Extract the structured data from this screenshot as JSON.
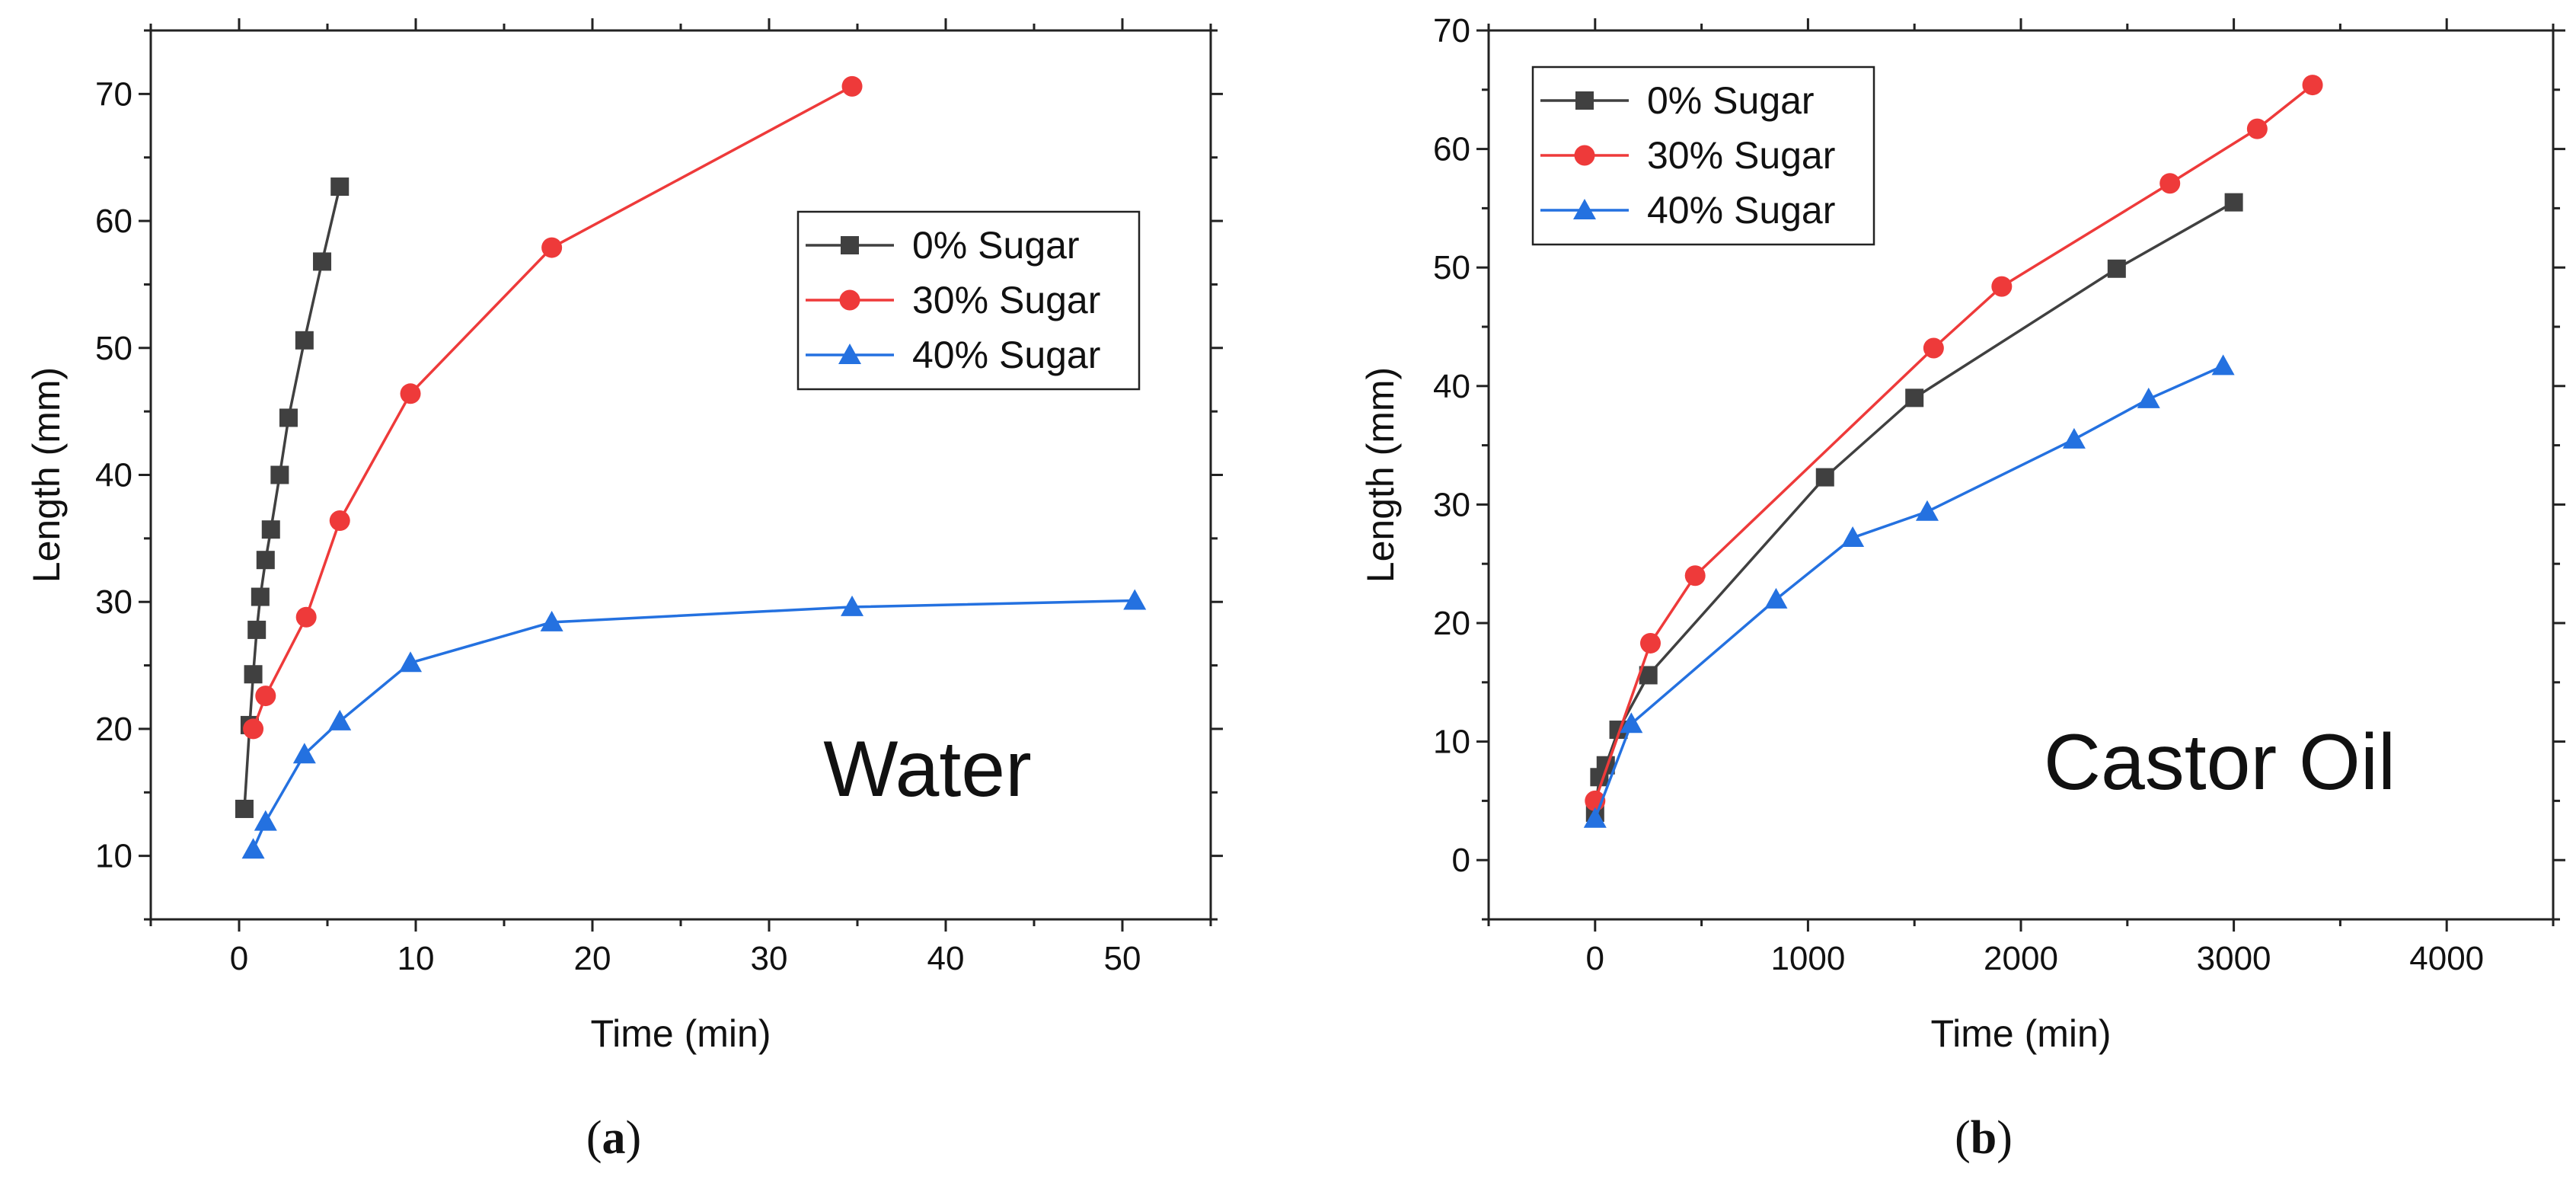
{
  "chart_data": [
    {
      "type": "line",
      "panel_label": "a",
      "xlabel": "Time (min)",
      "ylabel": "Length (mm)",
      "annotation": "Water",
      "xlim": [
        -5,
        55
      ],
      "ylim": [
        5,
        75
      ],
      "xticks": [
        0,
        10,
        20,
        30,
        40,
        50
      ],
      "yticks": [
        10,
        20,
        30,
        40,
        50,
        60,
        70
      ],
      "legend_position": "upper-right",
      "series": [
        {
          "name": "0% Sugar",
          "color": "#404040",
          "marker": "square",
          "x": [
            0.3,
            0.6,
            0.8,
            1.0,
            1.2,
            1.5,
            1.8,
            2.3,
            2.8,
            3.7,
            4.7,
            5.7
          ],
          "y": [
            13.7,
            20.3,
            24.3,
            27.8,
            30.4,
            33.3,
            35.7,
            40.0,
            44.5,
            50.6,
            56.8,
            62.7
          ]
        },
        {
          "name": "30% Sugar",
          "color": "#ee3a3a",
          "marker": "circle",
          "x": [
            0.8,
            1.5,
            3.8,
            5.7,
            9.7,
            17.7,
            34.7
          ],
          "y": [
            20.0,
            22.6,
            28.8,
            36.4,
            46.4,
            57.9,
            70.6
          ]
        },
        {
          "name": "40% Sugar",
          "color": "#2471e0",
          "marker": "triangle",
          "x": [
            0.8,
            1.5,
            3.7,
            5.7,
            9.7,
            17.7,
            34.7,
            50.7
          ],
          "y": [
            10.5,
            12.7,
            18.0,
            20.6,
            25.2,
            28.4,
            29.6,
            30.1
          ]
        }
      ]
    },
    {
      "type": "line",
      "panel_label": "b",
      "xlabel": "Time (min)",
      "ylabel": "Length (mm)",
      "annotation": "Castor Oil",
      "xlim": [
        -500,
        4500
      ],
      "ylim": [
        -5,
        70
      ],
      "xticks": [
        0,
        1000,
        2000,
        3000,
        4000
      ],
      "yticks": [
        0,
        10,
        20,
        30,
        40,
        50,
        60,
        70
      ],
      "legend_position": "upper-left",
      "series": [
        {
          "name": "0% Sugar",
          "color": "#404040",
          "marker": "square",
          "x": [
            0,
            20,
            50,
            110,
            250,
            1080,
            1500,
            2450,
            3000
          ],
          "y": [
            4.0,
            7.0,
            8.0,
            11.0,
            15.6,
            32.3,
            39.0,
            49.9,
            55.5
          ]
        },
        {
          "name": "30% Sugar",
          "color": "#ee3a3a",
          "marker": "circle",
          "x": [
            0,
            260,
            470,
            1590,
            1910,
            2700,
            3110,
            3370
          ],
          "y": [
            5.0,
            18.3,
            24.0,
            43.2,
            48.4,
            57.1,
            61.7,
            65.4
          ]
        },
        {
          "name": "40% Sugar",
          "color": "#2471e0",
          "marker": "triangle",
          "x": [
            0,
            170,
            850,
            1210,
            1560,
            2250,
            2600,
            2950
          ],
          "y": [
            3.5,
            11.5,
            22.0,
            27.2,
            29.4,
            35.5,
            38.9,
            41.7
          ]
        }
      ]
    }
  ]
}
